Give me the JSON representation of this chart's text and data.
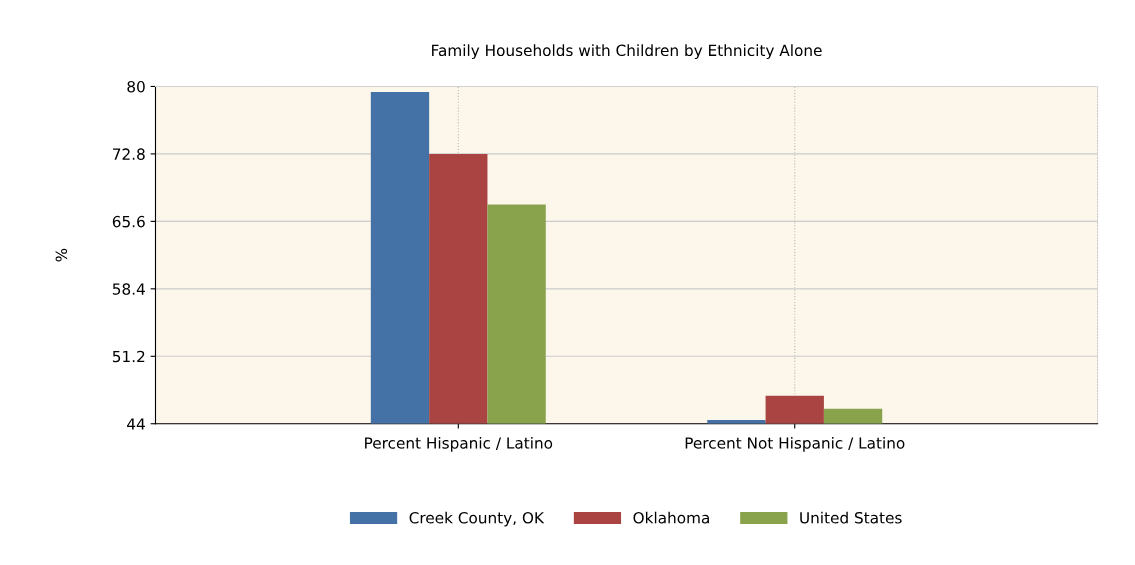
{
  "chart_data": {
    "type": "bar",
    "title": "Family Households with Children by Ethnicity Alone",
    "ylabel": "%",
    "categories": [
      "Percent Hispanic / Latino",
      "Percent Not Hispanic / Latino"
    ],
    "series": [
      {
        "name": "Creek County, OK",
        "color": "#4471a6",
        "values": [
          79.4,
          44.4
        ]
      },
      {
        "name": "Oklahoma",
        "color": "#a94442",
        "values": [
          72.8,
          47.0
        ]
      },
      {
        "name": "United States",
        "color": "#88a34b",
        "values": [
          67.4,
          45.6
        ]
      }
    ],
    "ylim": [
      44,
      80
    ],
    "yticks": [
      44,
      51.2,
      58.4,
      65.6,
      72.8,
      80
    ],
    "grid": true,
    "legend": "bottom"
  }
}
